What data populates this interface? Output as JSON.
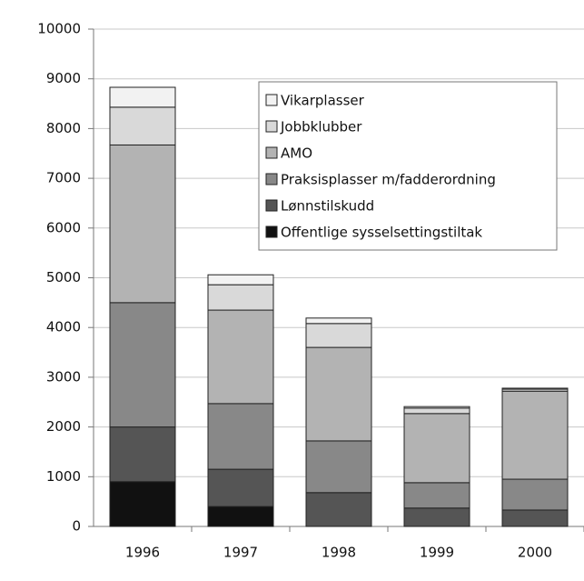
{
  "chart_data": {
    "type": "stacked_bar",
    "categories": [
      "1996",
      "1997",
      "1998",
      "1999",
      "2000"
    ],
    "series": [
      {
        "name": "Offentlige sysselsettingstiltak",
        "color": "#111111",
        "values": [
          900,
          400,
          0,
          0,
          0
        ]
      },
      {
        "name": "Lønnstilskudd",
        "color": "#555555",
        "values": [
          1100,
          750,
          680,
          370,
          330
        ]
      },
      {
        "name": "Praksisplasser m/fadderordning",
        "color": "#888888",
        "values": [
          2500,
          1320,
          1040,
          510,
          620
        ]
      },
      {
        "name": "AMO",
        "color": "#b3b3b3",
        "values": [
          3170,
          1880,
          1880,
          1390,
          1770
        ]
      },
      {
        "name": "Jobbklubber",
        "color": "#d9d9d9",
        "values": [
          760,
          510,
          480,
          110,
          40
        ]
      },
      {
        "name": "Vikarplasser",
        "color": "#f2f2f2",
        "values": [
          400,
          200,
          110,
          30,
          20
        ]
      }
    ],
    "ylim": [
      0,
      10000
    ],
    "yticks": [
      0,
      1000,
      2000,
      3000,
      4000,
      5000,
      6000,
      7000,
      8000,
      9000,
      10000
    ],
    "grid": true
  }
}
